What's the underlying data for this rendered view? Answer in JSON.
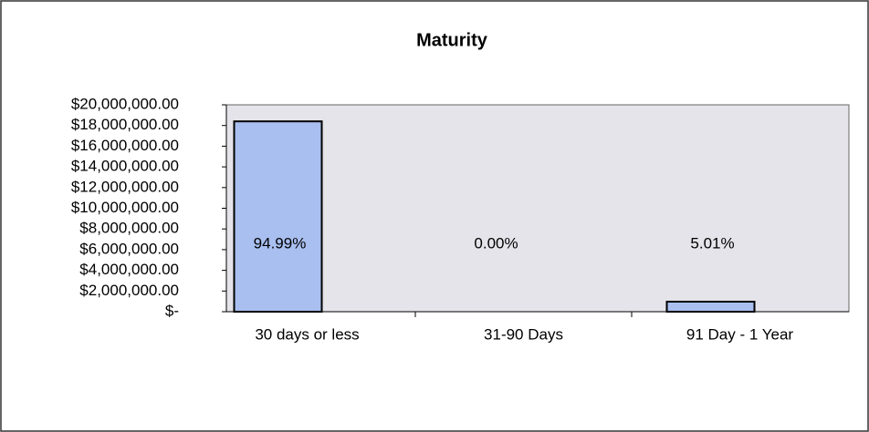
{
  "chart_data": {
    "type": "bar",
    "title": "Maturity",
    "categories": [
      "30 days or less",
      "31-90 Days",
      "91 Day - 1 Year"
    ],
    "values": [
      18400000,
      0,
      970000
    ],
    "data_labels": [
      "94.99%",
      "0.00%",
      "5.01%"
    ],
    "color": "#a9bff0",
    "ylim": [
      0,
      20000000
    ],
    "yticks": [
      {
        "value": 0,
        "label": "$-"
      },
      {
        "value": 2000000,
        "label": "$2,000,000.00"
      },
      {
        "value": 4000000,
        "label": "$4,000,000.00"
      },
      {
        "value": 6000000,
        "label": "$6,000,000.00"
      },
      {
        "value": 8000000,
        "label": "$8,000,000.00"
      },
      {
        "value": 10000000,
        "label": "$10,000,000.00"
      },
      {
        "value": 12000000,
        "label": "$12,000,000.00"
      },
      {
        "value": 14000000,
        "label": "$14,000,000.00"
      },
      {
        "value": 16000000,
        "label": "$16,000,000.00"
      },
      {
        "value": 18000000,
        "label": "$18,000,000.00"
      },
      {
        "value": 20000000,
        "label": "$20,000,000.00"
      }
    ],
    "grid": false
  }
}
